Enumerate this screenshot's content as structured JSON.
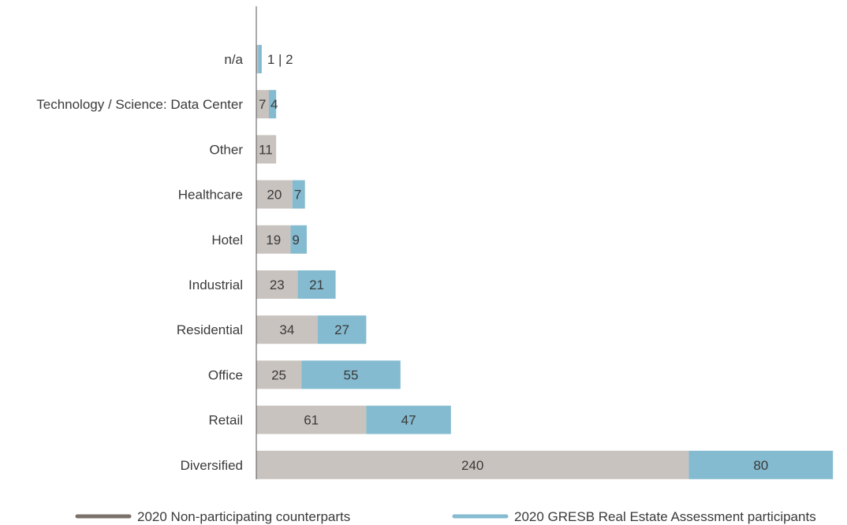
{
  "chart_data": {
    "type": "bar",
    "orientation": "horizontal",
    "stacked": true,
    "categories": [
      "n/a",
      "Technology / Science: Data Center",
      "Other",
      "Healthcare",
      "Hotel",
      "Industrial",
      "Residential",
      "Office",
      "Retail",
      "Diversified"
    ],
    "series": [
      {
        "name": "2020 Non-participating counterparts",
        "color": "#c9c3bf",
        "legend_color": "#7a716b",
        "values": [
          1,
          7,
          11,
          20,
          19,
          23,
          34,
          25,
          61,
          240
        ]
      },
      {
        "name": "2020 GRESB Real Estate Assessment participants",
        "color": "#84bbd0",
        "legend_color": "#84bbd0",
        "values": [
          2,
          4,
          0,
          7,
          9,
          21,
          27,
          55,
          47,
          80
        ]
      }
    ],
    "special_labels": {
      "n/a": "1 | 2"
    },
    "grid": false,
    "legend_position": "bottom"
  }
}
